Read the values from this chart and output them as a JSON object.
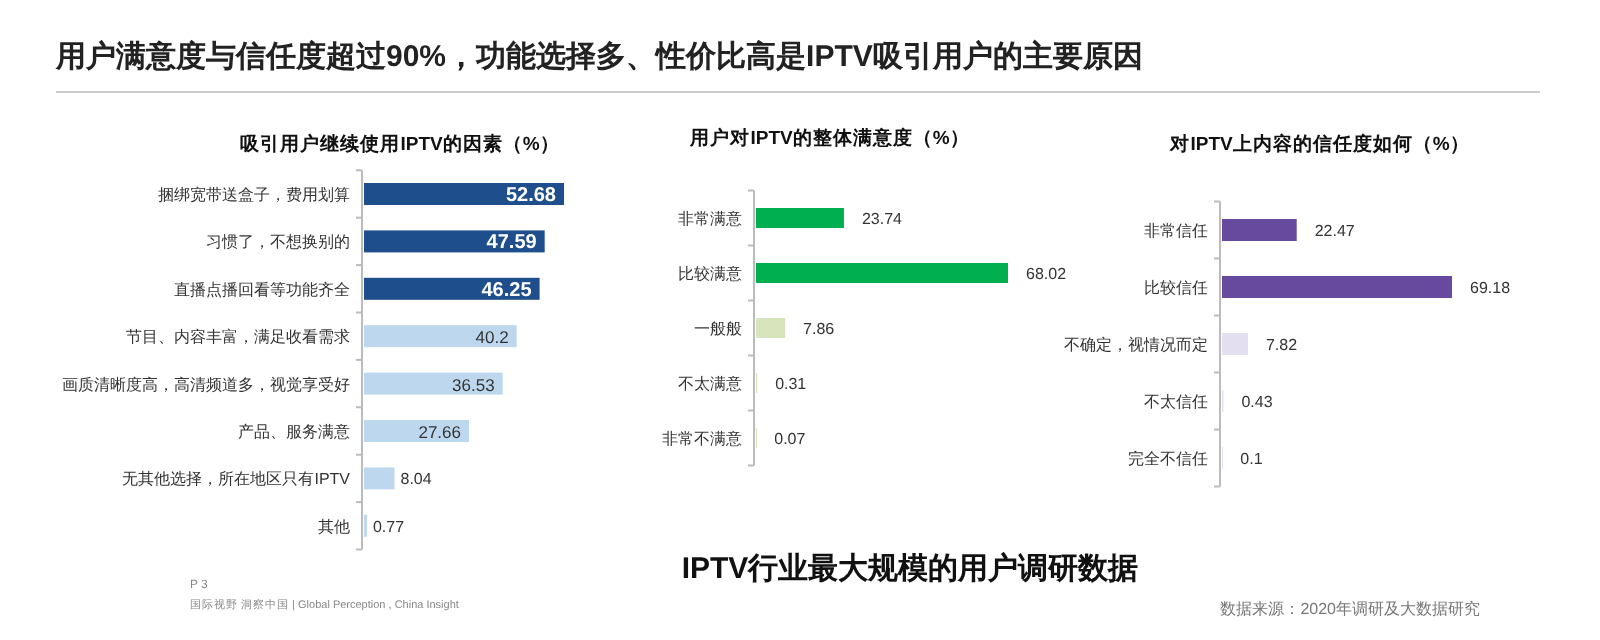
{
  "chart_data": [
    {
      "type": "other",
      "title": "用户满意度与信任度超过90%，功能选择多、性价比高是IPTV吸引用户的主要原因",
      "annotations": [
        "IPTV行业最大规模的用户调研数据",
        "P 3",
        "国际视野  洞察中国 | Global Perception , China Insight",
        "数据来源：2020年调研及大数据研究"
      ]
    },
    {
      "type": "bar",
      "orientation": "horizontal",
      "title": "吸引用户继续使用IPTV的因素（%）",
      "categories": [
        "捆绑宽带送盒子，费用划算",
        "习惯了，不想换别的",
        "直播点播回看等功能齐全",
        "节目、内容丰富，满足收看需求",
        "画质清晰度高，高清频道多，视觉享受好",
        "产品、服务满意",
        "无其他选择，所在地区只有IPTV",
        "其他"
      ],
      "values": [
        52.68,
        47.59,
        46.25,
        40.2,
        36.53,
        27.66,
        8.04,
        0.77
      ],
      "colors": [
        "#1f4e8c",
        "#1f4e8c",
        "#1f4e8c",
        "#bdd7ee",
        "#bdd7ee",
        "#bdd7ee",
        "#bdd7ee",
        "#bdd7ee"
      ],
      "data_labels": true
    },
    {
      "type": "bar",
      "orientation": "horizontal",
      "title": "用户对IPTV的整体满意度（%）",
      "categories": [
        "非常满意",
        "比较满意",
        "一般般",
        "不太满意",
        "非常不满意"
      ],
      "values": [
        23.74,
        68.02,
        7.86,
        0.31,
        0.07
      ],
      "colors": [
        "#00b050",
        "#00b050",
        "#d8e4bc",
        "#d8e4bc",
        "#d8e4bc"
      ],
      "data_labels": true
    },
    {
      "type": "bar",
      "orientation": "horizontal",
      "title": "对IPTV上内容的信任度如何（%）",
      "categories": [
        "非常信任",
        "比较信任",
        "不确定，视情况而定",
        "不太信任",
        "完全不信任"
      ],
      "values": [
        22.47,
        69.18,
        7.82,
        0.43,
        0.1
      ],
      "colors": [
        "#674a9e",
        "#674a9e",
        "#e4dff0",
        "#e4dff0",
        "#e4dff0"
      ],
      "data_labels": true
    }
  ]
}
